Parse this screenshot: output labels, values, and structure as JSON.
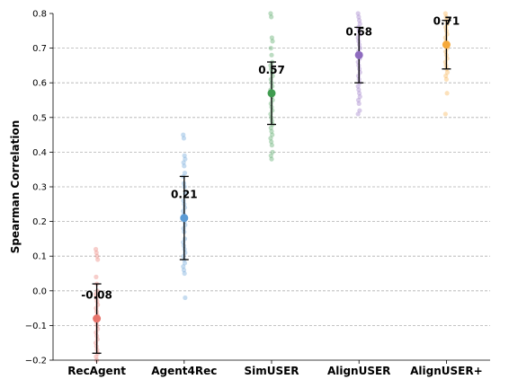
{
  "chart_data": {
    "type": "scatter",
    "ylabel": "Spearman Correlation",
    "ylim": [
      -0.2,
      0.8
    ],
    "yticks": [
      -0.2,
      -0.1,
      0.0,
      0.1,
      0.2,
      0.3,
      0.4,
      0.5,
      0.6,
      0.7,
      0.8
    ],
    "ytick_labels": [
      "−0.2",
      "−0.1",
      "0.0",
      "0.1",
      "0.2",
      "0.3",
      "0.4",
      "0.5",
      "0.6",
      "0.7",
      "0.8"
    ],
    "grid": "horizontal dashed",
    "categories": [
      "RecAgent",
      "Agent4Rec",
      "SimUSER",
      "AlignUSER",
      "AlignUSER+"
    ],
    "series": [
      {
        "color": "#e8736b",
        "mean": -0.08,
        "mean_label": "-0.08",
        "err_low": -0.18,
        "err_high": 0.02,
        "points": [
          0.12,
          0.11,
          0.1,
          0.09,
          0.04,
          0.02,
          0.0,
          -0.01,
          -0.02,
          -0.03,
          -0.04,
          -0.05,
          -0.06,
          -0.07,
          -0.08,
          -0.09,
          -0.1,
          -0.11,
          -0.12,
          -0.13,
          -0.14,
          -0.15,
          -0.16,
          -0.17,
          -0.18,
          -0.19,
          -0.2
        ]
      },
      {
        "color": "#5b9bd5",
        "mean": 0.21,
        "mean_label": "0.21",
        "err_low": 0.09,
        "err_high": 0.33,
        "points": [
          0.45,
          0.44,
          0.39,
          0.38,
          0.37,
          0.36,
          0.34,
          0.33,
          0.31,
          0.3,
          0.28,
          0.26,
          0.25,
          0.24,
          0.23,
          0.22,
          0.2,
          0.19,
          0.18,
          0.17,
          0.15,
          0.14,
          0.13,
          0.12,
          0.11,
          0.1,
          0.09,
          0.08,
          0.07,
          0.06,
          0.05,
          -0.02
        ]
      },
      {
        "color": "#3f9b4f",
        "mean": 0.57,
        "mean_label": "0.57",
        "err_low": 0.48,
        "err_high": 0.66,
        "points": [
          0.8,
          0.79,
          0.73,
          0.72,
          0.7,
          0.68,
          0.66,
          0.65,
          0.64,
          0.63,
          0.62,
          0.61,
          0.6,
          0.59,
          0.58,
          0.57,
          0.56,
          0.55,
          0.54,
          0.53,
          0.52,
          0.51,
          0.5,
          0.49,
          0.48,
          0.47,
          0.46,
          0.45,
          0.44,
          0.43,
          0.42,
          0.4,
          0.39,
          0.38
        ]
      },
      {
        "color": "#8e6bbf",
        "mean": 0.68,
        "mean_label": "0.68",
        "err_low": 0.6,
        "err_high": 0.76,
        "points": [
          0.8,
          0.79,
          0.78,
          0.77,
          0.76,
          0.75,
          0.74,
          0.73,
          0.72,
          0.71,
          0.7,
          0.69,
          0.68,
          0.67,
          0.66,
          0.65,
          0.64,
          0.63,
          0.62,
          0.61,
          0.6,
          0.59,
          0.58,
          0.57,
          0.56,
          0.55,
          0.54,
          0.52,
          0.51
        ]
      },
      {
        "color": "#f5a93b",
        "mean": 0.71,
        "mean_label": "0.71",
        "err_low": 0.64,
        "err_high": 0.78,
        "points": [
          0.8,
          0.79,
          0.78,
          0.77,
          0.76,
          0.75,
          0.74,
          0.73,
          0.72,
          0.71,
          0.7,
          0.69,
          0.68,
          0.67,
          0.66,
          0.65,
          0.64,
          0.63,
          0.62,
          0.61,
          0.57,
          0.51
        ]
      }
    ]
  }
}
